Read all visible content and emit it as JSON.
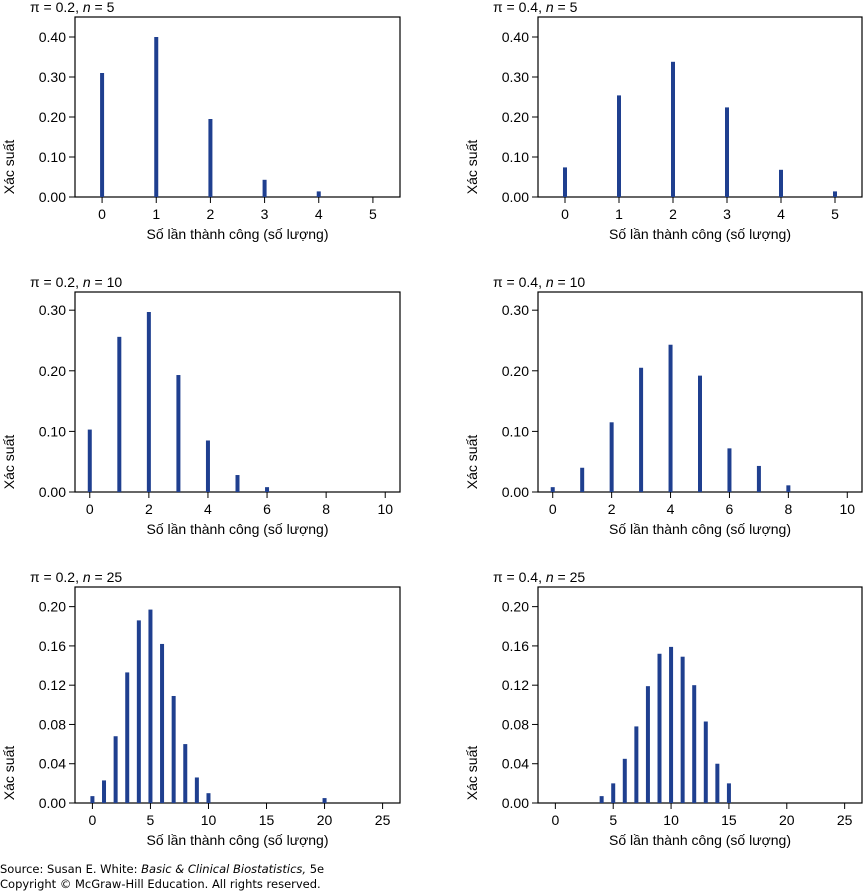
{
  "colors": {
    "bar": "#1f3f8f",
    "axis": "#000000",
    "background": "#ffffff"
  },
  "footer": {
    "source_prefix": "Source: Susan E. White: ",
    "source_book": "Basic & Clinical Biostatistics,",
    "source_edition": " 5e",
    "copyright": "Copyright © McGraw-Hill Education. All rights reserved."
  },
  "chart_data": [
    {
      "type": "bar",
      "title_prefix": "π = 0.2, ",
      "title_n": "n",
      "title_suffix": " = 5",
      "xlabel": "Số lần thành công (số lượng)",
      "ylabel": "Xác suất",
      "xlim": [
        -0.5,
        5.5
      ],
      "ylim": [
        0,
        0.45
      ],
      "xticks": [
        0,
        1,
        2,
        3,
        4,
        5
      ],
      "yticks": [
        0,
        0.1,
        0.2,
        0.3,
        0.4
      ],
      "ytick_decimals": 2,
      "x": [
        0,
        1,
        2,
        3,
        4,
        5
      ],
      "values": [
        0.31,
        0.4,
        0.195,
        0.043,
        0.014,
        0.0
      ]
    },
    {
      "type": "bar",
      "title_prefix": "π = 0.4, ",
      "title_n": "n",
      "title_suffix": " = 5",
      "xlabel": "Số lần thành công (số lượng)",
      "ylabel": "Xác suất",
      "xlim": [
        -0.5,
        5.5
      ],
      "ylim": [
        0,
        0.45
      ],
      "xticks": [
        0,
        1,
        2,
        3,
        4,
        5
      ],
      "yticks": [
        0,
        0.1,
        0.2,
        0.3,
        0.4
      ],
      "ytick_decimals": 2,
      "x": [
        0,
        1,
        2,
        3,
        4,
        5
      ],
      "values": [
        0.074,
        0.254,
        0.338,
        0.224,
        0.068,
        0.014
      ]
    },
    {
      "type": "bar",
      "title_prefix": "π = 0.2, ",
      "title_n": "n",
      "title_suffix": " = 10",
      "xlabel": "Số lần thành công (số lượng)",
      "ylabel": "Xác suất",
      "xlim": [
        -0.5,
        10.5
      ],
      "ylim": [
        0,
        0.33
      ],
      "xticks": [
        0,
        2,
        4,
        6,
        8,
        10
      ],
      "yticks": [
        0,
        0.1,
        0.2,
        0.3
      ],
      "ytick_decimals": 2,
      "x": [
        0,
        1,
        2,
        3,
        4,
        5,
        6,
        7,
        8,
        9,
        10
      ],
      "values": [
        0.103,
        0.256,
        0.297,
        0.193,
        0.085,
        0.028,
        0.008,
        0.0,
        0.0,
        0.0,
        0.0
      ]
    },
    {
      "type": "bar",
      "title_prefix": "π = 0.4, ",
      "title_n": "n",
      "title_suffix": " = 10",
      "xlabel": "Số lần thành công (số lượng)",
      "ylabel": "Xác suất",
      "xlim": [
        -0.5,
        10.5
      ],
      "ylim": [
        0,
        0.33
      ],
      "xticks": [
        0,
        2,
        4,
        6,
        8,
        10
      ],
      "yticks": [
        0,
        0.1,
        0.2,
        0.3
      ],
      "ytick_decimals": 2,
      "x": [
        0,
        1,
        2,
        3,
        4,
        5,
        6,
        7,
        8,
        9,
        10
      ],
      "values": [
        0.008,
        0.04,
        0.115,
        0.205,
        0.243,
        0.192,
        0.072,
        0.043,
        0.011,
        0.0,
        0.0
      ]
    },
    {
      "type": "bar",
      "title_prefix": "π = 0.2, ",
      "title_n": "n",
      "title_suffix": " = 25",
      "xlabel": "Số lần thành công (số lượng)",
      "ylabel": "Xác suất",
      "xlim": [
        -1.5,
        26.5
      ],
      "ylim": [
        0,
        0.22
      ],
      "xticks": [
        0,
        5,
        10,
        15,
        20,
        25
      ],
      "yticks": [
        0,
        0.04,
        0.08,
        0.12,
        0.16,
        0.2
      ],
      "ytick_decimals": 2,
      "x": [
        0,
        1,
        2,
        3,
        4,
        5,
        6,
        7,
        8,
        9,
        10,
        20
      ],
      "values": [
        0.007,
        0.023,
        0.068,
        0.133,
        0.186,
        0.197,
        0.162,
        0.109,
        0.06,
        0.026,
        0.01,
        0.005
      ]
    },
    {
      "type": "bar",
      "title_prefix": "π = 0.4, ",
      "title_n": "n",
      "title_suffix": " = 25",
      "xlabel": "Số lần thành công (số lượng)",
      "ylabel": "Xác suất",
      "xlim": [
        -1.5,
        26.5
      ],
      "ylim": [
        0,
        0.22
      ],
      "xticks": [
        0,
        5,
        10,
        15,
        20,
        25
      ],
      "yticks": [
        0,
        0.04,
        0.08,
        0.12,
        0.16,
        0.2
      ],
      "ytick_decimals": 2,
      "x": [
        4,
        5,
        6,
        7,
        8,
        9,
        10,
        11,
        12,
        13,
        14,
        15
      ],
      "values": [
        0.007,
        0.02,
        0.045,
        0.078,
        0.119,
        0.152,
        0.159,
        0.149,
        0.12,
        0.083,
        0.04,
        0.02
      ]
    }
  ]
}
